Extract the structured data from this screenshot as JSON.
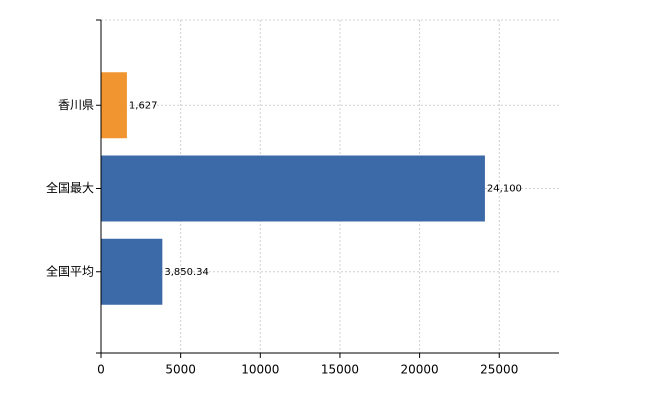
{
  "chart_data": {
    "type": "bar",
    "orientation": "horizontal",
    "categories": [
      "香川県",
      "全国最大",
      "全国平均"
    ],
    "values": [
      1627,
      24100,
      3850.34
    ],
    "value_labels": [
      "1,627",
      "24,100",
      "3,850.34"
    ],
    "colors": [
      "#f0952f",
      "#3c69a7",
      "#3c69a7"
    ],
    "xlim": [
      0,
      28750
    ],
    "xticks": [
      0,
      5000,
      10000,
      15000,
      20000,
      25000
    ],
    "grid": true
  }
}
